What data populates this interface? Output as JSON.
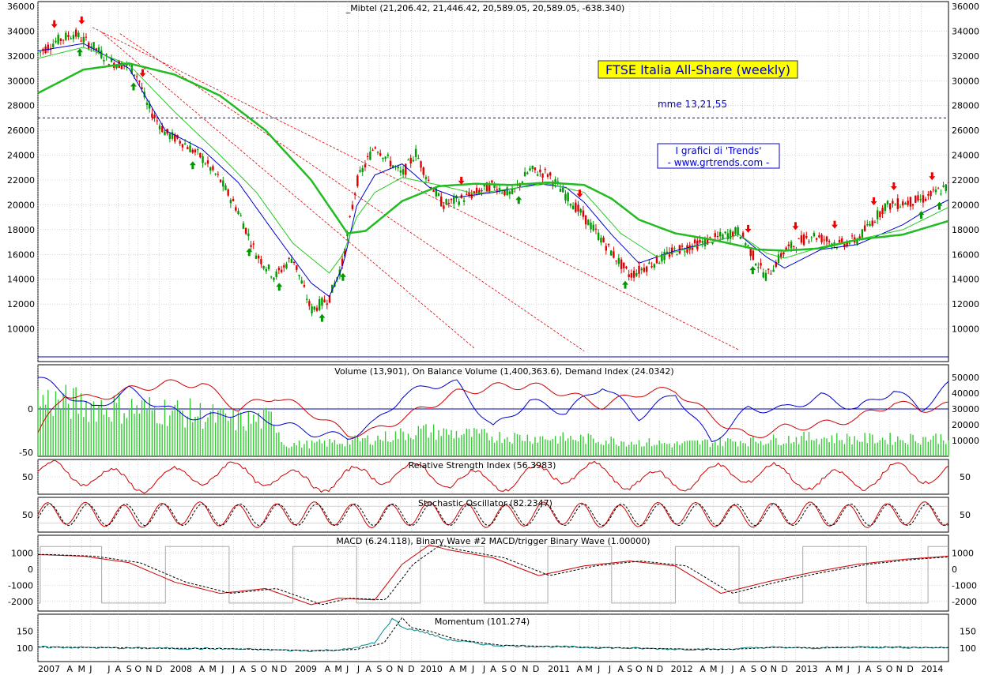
{
  "chart_data": {
    "type": "stock-chart",
    "main_panel": {
      "header": "_Mibtel (21,206.42, 21,446.42, 20,589.05, 20,589.05, -638.340)",
      "title_box": "FTSE Italia  All-Share (weekly)",
      "note": "mme 13,21,55",
      "credit_lines": [
        "I grafici di 'Trends'",
        "- www.grtrends.com -"
      ],
      "y_ticks": [
        10000,
        12000,
        14000,
        16000,
        18000,
        20000,
        22000,
        24000,
        26000,
        28000,
        30000,
        32000,
        34000,
        36000
      ],
      "ylim": [
        8000,
        36000
      ],
      "reference_line": 27000,
      "series": [
        {
          "type": "candles",
          "t": [
            0,
            0.02,
            0.04,
            0.06,
            0.08,
            0.1,
            0.11,
            0.12,
            0.14,
            0.16,
            0.18,
            0.2,
            0.22,
            0.24,
            0.26,
            0.28,
            0.3,
            0.32,
            0.335,
            0.35,
            0.37,
            0.4,
            0.415,
            0.43,
            0.445,
            0.47,
            0.5,
            0.52,
            0.54,
            0.56,
            0.6,
            0.65,
            0.7,
            0.74,
            0.77,
            0.79,
            0.8,
            0.82,
            0.85,
            0.88,
            0.9,
            0.93,
            0.97,
            1.0
          ],
          "v": [
            32200,
            33200,
            33800,
            32800,
            31500,
            31200,
            30300,
            28000,
            25800,
            25000,
            23800,
            22000,
            19500,
            16000,
            14200,
            15800,
            11500,
            12500,
            15400,
            21800,
            24800,
            22400,
            24200,
            21800,
            20000,
            20600,
            21600,
            20800,
            22800,
            22500,
            19000,
            14300,
            16300,
            17200,
            17900,
            15300,
            14200,
            16300,
            17600,
            16800,
            17200,
            19900,
            20400,
            21500
          ]
        },
        {
          "type": "ema13",
          "color": "#0000cc",
          "t": [
            0,
            0.05,
            0.1,
            0.14,
            0.18,
            0.22,
            0.26,
            0.3,
            0.32,
            0.335,
            0.35,
            0.37,
            0.4,
            0.43,
            0.46,
            0.5,
            0.55,
            0.58,
            0.6,
            0.63,
            0.66,
            0.7,
            0.74,
            0.77,
            0.8,
            0.82,
            0.86,
            0.9,
            0.95,
            0.97,
            1.0
          ],
          "v": [
            32400,
            33000,
            31000,
            26000,
            24500,
            21800,
            17700,
            13700,
            12600,
            15100,
            19900,
            22400,
            23300,
            21400,
            20600,
            21000,
            21700,
            21400,
            20200,
            17600,
            15300,
            16300,
            17000,
            17600,
            15800,
            14900,
            16400,
            16800,
            18400,
            19300,
            20400
          ]
        },
        {
          "type": "ema21",
          "color": "#22cc22",
          "t": [
            0,
            0.05,
            0.1,
            0.15,
            0.2,
            0.24,
            0.28,
            0.32,
            0.335,
            0.35,
            0.37,
            0.4,
            0.44,
            0.48,
            0.52,
            0.56,
            0.6,
            0.64,
            0.68,
            0.72,
            0.77,
            0.8,
            0.82,
            0.86,
            0.9,
            0.95,
            1.0
          ],
          "v": [
            31800,
            32700,
            31300,
            27500,
            24000,
            21000,
            16900,
            14500,
            16000,
            19000,
            21000,
            22200,
            21600,
            20900,
            21300,
            21700,
            21000,
            17700,
            15800,
            16600,
            17600,
            16100,
            15700,
            16600,
            17200,
            18000,
            19800
          ]
        },
        {
          "type": "ema55",
          "color": "#22bb22",
          "width": 2.5,
          "t": [
            0,
            0.05,
            0.1,
            0.15,
            0.2,
            0.25,
            0.3,
            0.34,
            0.36,
            0.4,
            0.44,
            0.48,
            0.52,
            0.56,
            0.6,
            0.63,
            0.66,
            0.7,
            0.74,
            0.79,
            0.82,
            0.86,
            0.9,
            0.95,
            1.0
          ],
          "v": [
            29000,
            30900,
            31400,
            30500,
            28800,
            26000,
            22000,
            17700,
            17900,
            20300,
            21500,
            21700,
            21600,
            21800,
            21600,
            20500,
            18800,
            17700,
            17200,
            16400,
            16300,
            16500,
            17200,
            17600,
            18700
          ]
        }
      ],
      "arrows_down": [
        0.018,
        0.048,
        0.115,
        0.465,
        0.595,
        0.78,
        0.832,
        0.875,
        0.918,
        0.94,
        0.982
      ],
      "arrows_up": [
        0.046,
        0.105,
        0.17,
        0.232,
        0.265,
        0.312,
        0.335,
        0.528,
        0.645,
        0.785,
        0.97,
        0.99
      ]
    },
    "volume_panel": {
      "header": "Volume (13,901), On Balance Volume (1,400,363.6), Demand Index (24.0342)",
      "left_ticks": [
        "-50",
        "0"
      ],
      "right_ticks": [
        "10000",
        "20000",
        "30000",
        "40000",
        "50000"
      ],
      "ylim": [
        0,
        55000
      ],
      "volume": {
        "t": [
          0,
          0.03,
          0.06,
          0.1,
          0.14,
          0.18,
          0.22,
          0.26,
          0.27,
          0.3,
          0.34,
          0.38,
          0.42,
          0.46,
          0.5,
          0.54,
          0.6,
          0.65,
          0.7,
          0.75,
          0.8,
          0.85,
          0.9,
          0.95,
          1.0
        ],
        "v": [
          42000,
          40000,
          38000,
          36000,
          34000,
          31000,
          26000,
          28000,
          9000,
          9000,
          11000,
          14000,
          19000,
          17000,
          15000,
          14000,
          13000,
          11000,
          9000,
          11000,
          12000,
          14000,
          13000,
          13000,
          14000
        ]
      },
      "on_balance_volume": {
        "t": [
          0,
          0.03,
          0.06,
          0.1,
          0.14,
          0.18,
          0.22,
          0.26,
          0.3,
          0.34,
          0.37,
          0.4,
          0.43,
          0.46,
          0.5,
          0.54,
          0.58,
          0.62,
          0.66,
          0.7,
          0.74,
          0.78,
          0.82,
          0.86,
          0.9,
          0.94,
          0.97,
          1.0
        ],
        "v": [
          50000,
          40000,
          30000,
          42000,
          30000,
          24000,
          28000,
          22000,
          15000,
          12000,
          21000,
          38000,
          45000,
          46000,
          18000,
          35000,
          28000,
          45000,
          25000,
          40000,
          9000,
          30000,
          30000,
          38000,
          30000,
          42000,
          30000,
          45000
        ]
      },
      "demand_index": {
        "t": [
          0,
          0.03,
          0.06,
          0.1,
          0.14,
          0.18,
          0.22,
          0.26,
          0.3,
          0.34,
          0.37,
          0.4,
          0.43,
          0.46,
          0.5,
          0.54,
          0.58,
          0.62,
          0.66,
          0.7,
          0.74,
          0.78,
          0.82,
          0.86,
          0.9,
          0.94,
          0.97,
          1.0
        ],
        "v": [
          15000,
          40000,
          36000,
          42000,
          46000,
          46000,
          30000,
          38000,
          28000,
          14000,
          16000,
          24000,
          32000,
          40000,
          44000,
          45000,
          40000,
          32000,
          40000,
          42000,
          25000,
          12000,
          18000,
          20000,
          24000,
          34000,
          30000,
          32000
        ]
      }
    },
    "rsi_panel": {
      "header": "Relative Strength Index (56.3983)",
      "tick": "50",
      "center": 50,
      "ylim": [
        20,
        80
      ]
    },
    "stochastic_panel": {
      "header": "Stochastic Oscillator (82.2347)",
      "tick": "50",
      "ylim": [
        0,
        100
      ]
    },
    "macd_panel": {
      "header": "MACD (6.24.118), Binary Wave #2  MACD/trigger Binary Wave (1.00000)",
      "ticks": [
        "-2000",
        "-1000",
        "0",
        "1000"
      ],
      "ylim": [
        -2300,
        1800
      ],
      "macd": {
        "t": [
          0,
          0.05,
          0.1,
          0.15,
          0.2,
          0.25,
          0.3,
          0.33,
          0.37,
          0.4,
          0.43,
          0.45,
          0.5,
          0.55,
          0.6,
          0.65,
          0.7,
          0.75,
          0.8,
          0.85,
          0.9,
          0.95,
          1.0
        ],
        "v": [
          900,
          800,
          400,
          -800,
          -1500,
          -1200,
          -2200,
          -1800,
          -1900,
          300,
          1500,
          1200,
          700,
          -400,
          200,
          500,
          200,
          -1500,
          -800,
          -200,
          300,
          600,
          800
        ]
      }
    },
    "momentum_panel": {
      "header": "Momentum (101.274)",
      "ticks": [
        "100",
        "150"
      ],
      "ylim": [
        60,
        200
      ],
      "momentum": {
        "t": [
          0,
          0.1,
          0.2,
          0.3,
          0.34,
          0.37,
          0.39,
          0.4,
          0.42,
          0.45,
          0.5,
          0.6,
          0.7,
          0.75,
          0.8,
          0.85,
          0.9,
          1.0
        ],
        "v": [
          103,
          100,
          98,
          92,
          96,
          115,
          190,
          160,
          150,
          125,
          108,
          102,
          97,
          96,
          102,
          100,
          103,
          101
        ]
      }
    },
    "x_labels": [
      {
        "t": 0.0,
        "label": "2007"
      },
      {
        "t": 0.035,
        "label": "A"
      },
      {
        "t": 0.048,
        "label": "M"
      },
      {
        "t": 0.058,
        "label": "J"
      },
      {
        "t": 0.078,
        "label": "J"
      },
      {
        "t": 0.088,
        "label": "A"
      },
      {
        "t": 0.1,
        "label": "S"
      },
      {
        "t": 0.11,
        "label": "O"
      },
      {
        "t": 0.122,
        "label": "N"
      },
      {
        "t": 0.133,
        "label": "D"
      },
      {
        "t": 0.145,
        "label": "2008"
      },
      {
        "t": 0.18,
        "label": "A"
      },
      {
        "t": 0.192,
        "label": "M"
      },
      {
        "t": 0.203,
        "label": "J"
      },
      {
        "t": 0.215,
        "label": "J"
      },
      {
        "t": 0.225,
        "label": "A"
      },
      {
        "t": 0.237,
        "label": "S"
      },
      {
        "t": 0.248,
        "label": "O"
      },
      {
        "t": 0.26,
        "label": "N"
      },
      {
        "t": 0.27,
        "label": "D"
      },
      {
        "t": 0.282,
        "label": "2009"
      },
      {
        "t": 0.318,
        "label": "A"
      },
      {
        "t": 0.33,
        "label": "M"
      },
      {
        "t": 0.34,
        "label": "J"
      },
      {
        "t": 0.352,
        "label": "J"
      },
      {
        "t": 0.363,
        "label": "A"
      },
      {
        "t": 0.375,
        "label": "S"
      },
      {
        "t": 0.386,
        "label": "O"
      },
      {
        "t": 0.398,
        "label": "N"
      },
      {
        "t": 0.41,
        "label": "D"
      },
      {
        "t": 0.42,
        "label": "2010"
      },
      {
        "t": 0.455,
        "label": "A"
      },
      {
        "t": 0.467,
        "label": "M"
      },
      {
        "t": 0.478,
        "label": "J"
      },
      {
        "t": 0.49,
        "label": "J"
      },
      {
        "t": 0.5,
        "label": "A"
      },
      {
        "t": 0.512,
        "label": "S"
      },
      {
        "t": 0.522,
        "label": "O"
      },
      {
        "t": 0.535,
        "label": "N"
      },
      {
        "t": 0.547,
        "label": "D"
      },
      {
        "t": 0.56,
        "label": "2011"
      },
      {
        "t": 0.595,
        "label": "A"
      },
      {
        "t": 0.605,
        "label": "M"
      },
      {
        "t": 0.616,
        "label": "J"
      },
      {
        "t": 0.628,
        "label": "J"
      },
      {
        "t": 0.64,
        "label": "A"
      },
      {
        "t": 0.65,
        "label": "S"
      },
      {
        "t": 0.66,
        "label": "O"
      },
      {
        "t": 0.672,
        "label": "N"
      },
      {
        "t": 0.683,
        "label": "D"
      },
      {
        "t": 0.695,
        "label": "2012"
      },
      {
        "t": 0.73,
        "label": "A"
      },
      {
        "t": 0.742,
        "label": "M"
      },
      {
        "t": 0.752,
        "label": "J"
      },
      {
        "t": 0.763,
        "label": "J"
      },
      {
        "t": 0.774,
        "label": "A"
      },
      {
        "t": 0.786,
        "label": "S"
      },
      {
        "t": 0.797,
        "label": "O"
      },
      {
        "t": 0.808,
        "label": "N"
      },
      {
        "t": 0.82,
        "label": "D"
      },
      {
        "t": 0.832,
        "label": "2013"
      },
      {
        "t": 0.868,
        "label": "A"
      },
      {
        "t": 0.88,
        "label": "M"
      },
      {
        "t": 0.89,
        "label": "J"
      },
      {
        "t": 0.902,
        "label": "J"
      },
      {
        "t": 0.912,
        "label": "A"
      },
      {
        "t": 0.924,
        "label": "S"
      },
      {
        "t": 0.935,
        "label": "O"
      },
      {
        "t": 0.946,
        "label": "N"
      },
      {
        "t": 0.958,
        "label": "D"
      },
      {
        "t": 0.97,
        "label": "2014"
      }
    ],
    "colors": {
      "up": "#009900",
      "down": "#dd0000",
      "ema13": "#0000cc",
      "ema21": "#33cc33",
      "ema55": "#22bb22",
      "trend": "#dd0000",
      "volume": "#33cc33",
      "obv": "#0000cc",
      "demand": "#cc0000",
      "binary": "#aaaaaa",
      "grid": "#bbbbbb",
      "title_bg": "#ffff00",
      "title_fg": "#0000cc"
    }
  }
}
